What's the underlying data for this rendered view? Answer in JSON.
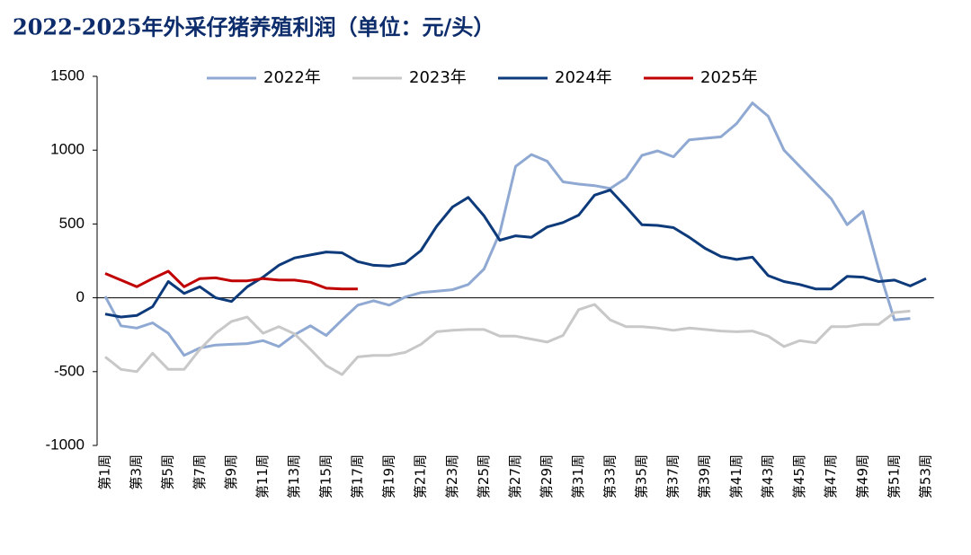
{
  "chart_data": {
    "type": "line",
    "title": "2022-2025年外采仔猪养殖利润（单位：元/头）",
    "categories": [
      "第1周",
      null,
      "第3周",
      null,
      "第5周",
      null,
      "第7周",
      null,
      "第9周",
      null,
      "第11周",
      null,
      "第13周",
      null,
      "第15周",
      null,
      "第17周",
      null,
      "第19周",
      null,
      "第21周",
      null,
      "第23周",
      null,
      "第25周",
      null,
      "第27周",
      null,
      "第29周",
      null,
      "第31周",
      null,
      "第33周",
      null,
      "第35周",
      null,
      "第37周",
      null,
      "第39周",
      null,
      "第41周",
      null,
      "第43周",
      null,
      "第45周",
      null,
      "第47周",
      null,
      "第49周",
      null,
      "第51周",
      null,
      "第53周"
    ],
    "series": [
      {
        "name": "2022年",
        "color": "#8fa9d3",
        "values": [
          10,
          -190,
          -205,
          -170,
          -240,
          -390,
          -340,
          -320,
          -315,
          -310,
          -290,
          -330,
          -250,
          -190,
          -255,
          -150,
          -50,
          -20,
          -50,
          5,
          35,
          45,
          55,
          90,
          195,
          440,
          890,
          970,
          925,
          785,
          770,
          760,
          740,
          810,
          965,
          995,
          955,
          1070,
          1080,
          1090,
          1180,
          1320,
          1230,
          1000,
          890,
          780,
          670,
          495,
          585,
          195,
          -150,
          -140,
          null
        ]
      },
      {
        "name": "2023年",
        "color": "#c8c8c8",
        "values": [
          -400,
          -485,
          -500,
          -375,
          -485,
          -485,
          -350,
          -240,
          -160,
          -130,
          -240,
          -195,
          -245,
          -350,
          -460,
          -520,
          -400,
          -390,
          -390,
          -370,
          -315,
          -230,
          -220,
          -215,
          -215,
          -260,
          -260,
          -280,
          -300,
          -255,
          -80,
          -45,
          -150,
          -195,
          -195,
          -205,
          -220,
          -205,
          -215,
          -225,
          -230,
          -225,
          -260,
          -330,
          -290,
          -305,
          -195,
          -195,
          -180,
          -180,
          -100,
          -90,
          null
        ]
      },
      {
        "name": "2024年",
        "color": "#0d3a7a",
        "values": [
          -110,
          -130,
          -120,
          -60,
          110,
          30,
          75,
          0,
          -25,
          75,
          140,
          220,
          270,
          290,
          310,
          305,
          245,
          220,
          215,
          235,
          320,
          485,
          615,
          680,
          555,
          390,
          420,
          410,
          480,
          510,
          560,
          695,
          730,
          615,
          495,
          490,
          475,
          410,
          335,
          280,
          260,
          275,
          150,
          110,
          90,
          60,
          60,
          145,
          140,
          110,
          120,
          80,
          130
        ]
      },
      {
        "name": "2025年",
        "color": "#c00000",
        "values": [
          165,
          120,
          75,
          130,
          180,
          75,
          130,
          135,
          115,
          115,
          130,
          120,
          120,
          105,
          65,
          60,
          60,
          null,
          null,
          null,
          null,
          null,
          null,
          null,
          null,
          null,
          null,
          null,
          null,
          null,
          null,
          null,
          null,
          null,
          null,
          null,
          null,
          null,
          null,
          null,
          null,
          null,
          null,
          null,
          null,
          null,
          null,
          null,
          null,
          null,
          null,
          null,
          null
        ]
      }
    ],
    "ylim": [
      -1000,
      1500
    ],
    "yticks": [
      -1000,
      -500,
      0,
      500,
      1000,
      1500
    ],
    "grid": false,
    "legend": "top"
  }
}
